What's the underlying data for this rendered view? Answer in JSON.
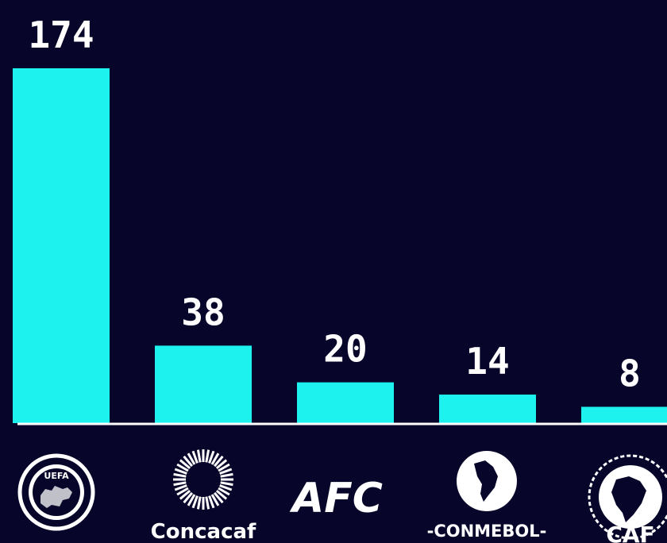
{
  "chart_data": {
    "type": "bar",
    "categories": [
      "UEFA",
      "Concacaf",
      "AFC",
      "CONMEBOL",
      "CAF"
    ],
    "values": [
      174,
      38,
      20,
      14,
      8
    ],
    "data_labels": [
      "174",
      "38",
      "20",
      "14",
      "8"
    ],
    "ylim": [
      0,
      174
    ],
    "grid": false,
    "legend": "none"
  },
  "logos": {
    "uefa": "UEFA",
    "concacaf": "Concacaf",
    "afc": "AFC",
    "conmebol": "-CONMEBOL-",
    "caf": "CAF"
  },
  "colors": {
    "background": "#07062a",
    "bar": "#1ef2ee",
    "baseline": "#ffffff",
    "text": "#ffffff"
  }
}
